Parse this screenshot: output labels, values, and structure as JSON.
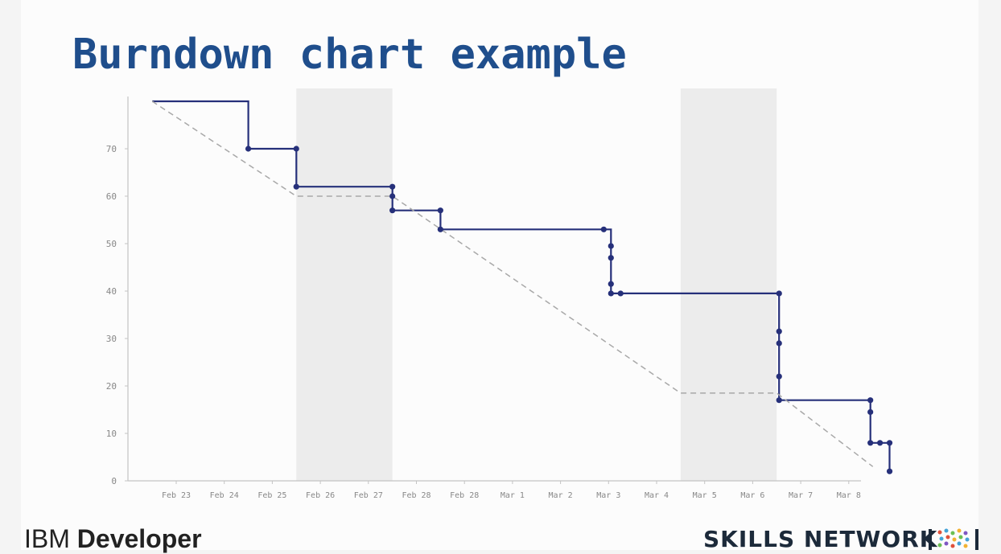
{
  "slide": {
    "title": "Burndown chart example",
    "footer_left_prefix": "IBM",
    "footer_left_brand": "Developer",
    "footer_right": "SKILLS NETWORK"
  },
  "chart_data": {
    "type": "line",
    "title": "",
    "xlabel": "",
    "ylabel": "",
    "ylim": [
      0,
      80
    ],
    "yticks": [
      0,
      10,
      20,
      30,
      40,
      50,
      60,
      70
    ],
    "xtick_labels": [
      "Feb 23",
      "Feb 24",
      "Feb 25",
      "Feb 26",
      "Feb 27",
      "Feb 28",
      "Feb 28",
      "Mar 1",
      "Mar 2",
      "Mar 3",
      "Mar 4",
      "Mar 5",
      "Mar 6",
      "Mar 7",
      "Mar 8"
    ],
    "x_domain": [
      -0.5,
      14.5
    ],
    "weekend_bands": [
      [
        2.5,
        4.5
      ],
      [
        10.5,
        12.5
      ]
    ],
    "colors": {
      "actual": "#26307a",
      "ideal": "#a8a8a8",
      "band": "#ececec",
      "axis": "#c4c4c4",
      "tick_text": "#888888"
    },
    "series": [
      {
        "style": "actual",
        "points": [
          [
            -0.5,
            80
          ],
          [
            1.5,
            80
          ],
          [
            1.5,
            70
          ],
          [
            2.5,
            70
          ],
          [
            2.5,
            62
          ],
          [
            4.5,
            62
          ],
          [
            4.5,
            60
          ],
          [
            4.5,
            57
          ],
          [
            5.5,
            57
          ],
          [
            5.5,
            53
          ],
          [
            8.9,
            53
          ],
          [
            9.05,
            53
          ],
          [
            9.05,
            49.5
          ],
          [
            9.05,
            47
          ],
          [
            9.05,
            41.5
          ],
          [
            9.05,
            39.5
          ],
          [
            9.25,
            39.5
          ],
          [
            12.55,
            39.5
          ],
          [
            12.55,
            31.5
          ],
          [
            12.55,
            29
          ],
          [
            12.55,
            22
          ],
          [
            12.55,
            17
          ],
          [
            14.45,
            17
          ],
          [
            14.45,
            14.5
          ],
          [
            14.45,
            8
          ],
          [
            14.65,
            8
          ],
          [
            14.85,
            8
          ],
          [
            14.85,
            2
          ]
        ],
        "markers": [
          [
            1.5,
            70
          ],
          [
            2.5,
            70
          ],
          [
            2.5,
            62
          ],
          [
            4.5,
            62
          ],
          [
            4.5,
            60
          ],
          [
            4.5,
            57
          ],
          [
            5.5,
            57
          ],
          [
            5.5,
            53
          ],
          [
            8.9,
            53
          ],
          [
            9.05,
            49.5
          ],
          [
            9.05,
            47
          ],
          [
            9.05,
            41.5
          ],
          [
            9.05,
            39.5
          ],
          [
            9.25,
            39.5
          ],
          [
            12.55,
            39.5
          ],
          [
            12.55,
            31.5
          ],
          [
            12.55,
            29
          ],
          [
            12.55,
            22
          ],
          [
            12.55,
            17
          ],
          [
            14.45,
            17
          ],
          [
            14.45,
            14.5
          ],
          [
            14.45,
            8
          ],
          [
            14.65,
            8
          ],
          [
            14.85,
            8
          ],
          [
            14.85,
            2
          ]
        ]
      },
      {
        "style": "ideal",
        "points": [
          [
            -0.5,
            80
          ],
          [
            2.5,
            60
          ],
          [
            4.5,
            60
          ],
          [
            10.5,
            18.5
          ],
          [
            12.5,
            18.5
          ],
          [
            14.5,
            3
          ]
        ]
      }
    ]
  }
}
